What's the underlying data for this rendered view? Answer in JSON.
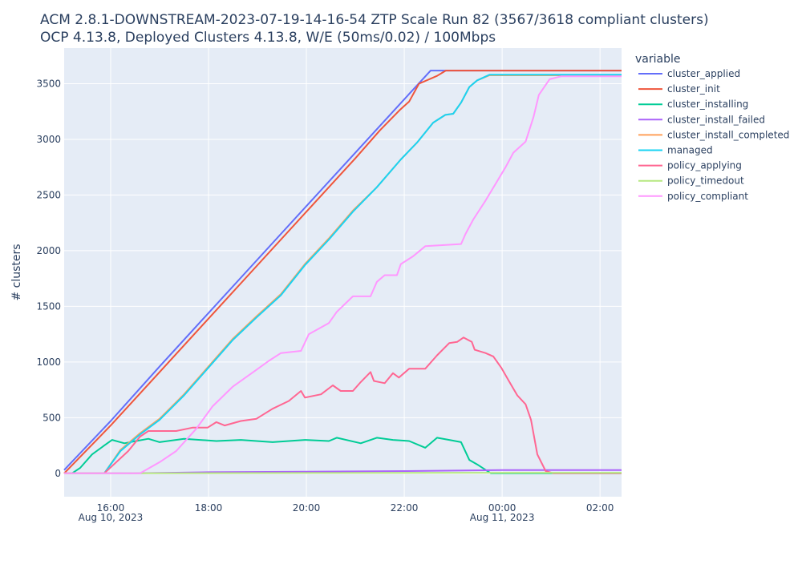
{
  "chart_data": {
    "type": "line",
    "title": "ACM 2.8.1-DOWNSTREAM-2023-07-19-14-16-54 ZTP Scale Run 82 (3567/3618 compliant clusters)",
    "subtitle": "OCP 4.13.8, Deployed Clusters 4.13.8, W/E (50ms/0.02) / 100Mbps",
    "xlabel": "",
    "ylabel": "# clusters",
    "x_unit": "hours since Aug 10, 2023 00:00",
    "xlim": [
      15.05,
      26.44
    ],
    "ylim": [
      -210,
      3820
    ],
    "grid": true,
    "legend_title": "variable",
    "legend_position": "right",
    "x_ticks": [
      {
        "value": 16,
        "label": "16:00",
        "sub": "Aug 10, 2023"
      },
      {
        "value": 18,
        "label": "18:00",
        "sub": ""
      },
      {
        "value": 20,
        "label": "20:00",
        "sub": ""
      },
      {
        "value": 22,
        "label": "22:00",
        "sub": ""
      },
      {
        "value": 24,
        "label": "00:00",
        "sub": "Aug 11, 2023"
      },
      {
        "value": 26,
        "label": "02:00",
        "sub": ""
      }
    ],
    "y_ticks": [
      0,
      500,
      1000,
      1500,
      2000,
      2500,
      3000,
      3500
    ],
    "series": [
      {
        "name": "cluster_applied",
        "color": "#636efa",
        "points": [
          [
            15.05,
            30
          ],
          [
            16,
            470
          ],
          [
            17,
            960
          ],
          [
            18,
            1440
          ],
          [
            19,
            1920
          ],
          [
            20,
            2400
          ],
          [
            21,
            2880
          ],
          [
            22,
            3360
          ],
          [
            22.54,
            3618
          ],
          [
            26.44,
            3618
          ]
        ]
      },
      {
        "name": "cluster_init",
        "color": "#EF553B",
        "points": [
          [
            15.05,
            0
          ],
          [
            16,
            430
          ],
          [
            17,
            910
          ],
          [
            18,
            1390
          ],
          [
            19,
            1870
          ],
          [
            20,
            2350
          ],
          [
            21,
            2830
          ],
          [
            21.5,
            3080
          ],
          [
            21.9,
            3260
          ],
          [
            22.1,
            3340
          ],
          [
            22.3,
            3500
          ],
          [
            22.67,
            3570
          ],
          [
            22.85,
            3618
          ],
          [
            26.44,
            3618
          ]
        ]
      },
      {
        "name": "cluster_installing",
        "color": "#00cc96",
        "points": [
          [
            15.05,
            0
          ],
          [
            15.21,
            0
          ],
          [
            15.38,
            50
          ],
          [
            15.62,
            170
          ],
          [
            15.87,
            250
          ],
          [
            16.03,
            300
          ],
          [
            16.28,
            270
          ],
          [
            16.52,
            290
          ],
          [
            16.77,
            310
          ],
          [
            17.0,
            280
          ],
          [
            17.5,
            310
          ],
          [
            18.16,
            290
          ],
          [
            18.66,
            300
          ],
          [
            19.31,
            280
          ],
          [
            19.97,
            300
          ],
          [
            20.46,
            290
          ],
          [
            20.62,
            320
          ],
          [
            21.11,
            270
          ],
          [
            21.44,
            320
          ],
          [
            21.77,
            300
          ],
          [
            22.1,
            290
          ],
          [
            22.43,
            230
          ],
          [
            22.67,
            320
          ],
          [
            22.92,
            300
          ],
          [
            23.16,
            280
          ],
          [
            23.33,
            120
          ],
          [
            23.49,
            80
          ],
          [
            23.77,
            0
          ],
          [
            26.44,
            0
          ]
        ]
      },
      {
        "name": "cluster_install_failed",
        "color": "#ab63fa",
        "points": [
          [
            15.05,
            0
          ],
          [
            16.5,
            0
          ],
          [
            18,
            10
          ],
          [
            20,
            15
          ],
          [
            22,
            20
          ],
          [
            24,
            30
          ],
          [
            26.44,
            30
          ]
        ]
      },
      {
        "name": "cluster_install_completed",
        "color": "#FFA15A",
        "points": [
          [
            15.05,
            0
          ],
          [
            15.87,
            0
          ],
          [
            16.2,
            210
          ],
          [
            16.6,
            360
          ],
          [
            17.0,
            490
          ],
          [
            17.5,
            710
          ],
          [
            18.0,
            960
          ],
          [
            18.5,
            1210
          ],
          [
            18.98,
            1410
          ],
          [
            19.48,
            1610
          ],
          [
            19.97,
            1880
          ],
          [
            20.46,
            2110
          ],
          [
            20.95,
            2360
          ],
          [
            21.44,
            2570
          ],
          [
            21.93,
            2820
          ],
          [
            22.26,
            2970
          ],
          [
            22.59,
            3150
          ],
          [
            22.84,
            3220
          ],
          [
            23.0,
            3230
          ],
          [
            23.16,
            3330
          ],
          [
            23.33,
            3470
          ],
          [
            23.49,
            3530
          ],
          [
            23.74,
            3575
          ],
          [
            26.44,
            3575
          ]
        ]
      },
      {
        "name": "managed",
        "color": "#19d3f3",
        "points": [
          [
            15.05,
            0
          ],
          [
            15.87,
            0
          ],
          [
            16.2,
            200
          ],
          [
            16.6,
            350
          ],
          [
            17.0,
            480
          ],
          [
            17.5,
            700
          ],
          [
            18.0,
            950
          ],
          [
            18.5,
            1200
          ],
          [
            18.98,
            1400
          ],
          [
            19.48,
            1600
          ],
          [
            19.97,
            1870
          ],
          [
            20.46,
            2100
          ],
          [
            20.95,
            2350
          ],
          [
            21.44,
            2570
          ],
          [
            21.93,
            2820
          ],
          [
            22.26,
            2970
          ],
          [
            22.59,
            3150
          ],
          [
            22.84,
            3220
          ],
          [
            23.0,
            3230
          ],
          [
            23.16,
            3330
          ],
          [
            23.33,
            3470
          ],
          [
            23.49,
            3530
          ],
          [
            23.74,
            3580
          ],
          [
            26.44,
            3580
          ]
        ]
      },
      {
        "name": "policy_applying",
        "color": "#FF6692",
        "points": [
          [
            15.05,
            0
          ],
          [
            15.87,
            0
          ],
          [
            16.36,
            200
          ],
          [
            16.6,
            330
          ],
          [
            16.77,
            380
          ],
          [
            17.34,
            380
          ],
          [
            17.67,
            410
          ],
          [
            17.98,
            410
          ],
          [
            18.16,
            460
          ],
          [
            18.33,
            430
          ],
          [
            18.66,
            470
          ],
          [
            18.98,
            490
          ],
          [
            19.31,
            580
          ],
          [
            19.64,
            650
          ],
          [
            19.89,
            740
          ],
          [
            19.97,
            680
          ],
          [
            20.3,
            710
          ],
          [
            20.54,
            790
          ],
          [
            20.7,
            740
          ],
          [
            20.95,
            740
          ],
          [
            21.11,
            820
          ],
          [
            21.31,
            910
          ],
          [
            21.38,
            830
          ],
          [
            21.6,
            810
          ],
          [
            21.77,
            900
          ],
          [
            21.89,
            860
          ],
          [
            22.1,
            940
          ],
          [
            22.43,
            940
          ],
          [
            22.67,
            1060
          ],
          [
            22.92,
            1170
          ],
          [
            23.08,
            1180
          ],
          [
            23.21,
            1220
          ],
          [
            23.38,
            1180
          ],
          [
            23.44,
            1110
          ],
          [
            23.66,
            1080
          ],
          [
            23.82,
            1050
          ],
          [
            23.98,
            950
          ],
          [
            24.15,
            820
          ],
          [
            24.31,
            700
          ],
          [
            24.48,
            620
          ],
          [
            24.59,
            480
          ],
          [
            24.72,
            170
          ],
          [
            24.89,
            20
          ],
          [
            25.05,
            0
          ],
          [
            26.44,
            0
          ]
        ]
      },
      {
        "name": "policy_timedout",
        "color": "#B6E880",
        "points": [
          [
            15.05,
            0
          ],
          [
            20,
            3
          ],
          [
            24,
            5
          ],
          [
            26.44,
            5
          ]
        ]
      },
      {
        "name": "policy_compliant",
        "color": "#FF97FF",
        "points": [
          [
            15.05,
            0
          ],
          [
            16.6,
            0
          ],
          [
            17.0,
            100
          ],
          [
            17.34,
            200
          ],
          [
            17.75,
            400
          ],
          [
            18.08,
            600
          ],
          [
            18.5,
            780
          ],
          [
            18.98,
            930
          ],
          [
            19.23,
            1010
          ],
          [
            19.48,
            1080
          ],
          [
            19.89,
            1100
          ],
          [
            20.05,
            1250
          ],
          [
            20.46,
            1350
          ],
          [
            20.62,
            1450
          ],
          [
            20.95,
            1590
          ],
          [
            21.31,
            1590
          ],
          [
            21.44,
            1720
          ],
          [
            21.6,
            1780
          ],
          [
            21.85,
            1780
          ],
          [
            21.93,
            1880
          ],
          [
            22.18,
            1950
          ],
          [
            22.43,
            2040
          ],
          [
            23.16,
            2060
          ],
          [
            23.25,
            2150
          ],
          [
            23.41,
            2280
          ],
          [
            23.66,
            2450
          ],
          [
            24.07,
            2750
          ],
          [
            24.23,
            2880
          ],
          [
            24.48,
            2980
          ],
          [
            24.64,
            3200
          ],
          [
            24.75,
            3400
          ],
          [
            24.97,
            3540
          ],
          [
            25.21,
            3567
          ],
          [
            26.44,
            3567
          ]
        ]
      }
    ]
  }
}
